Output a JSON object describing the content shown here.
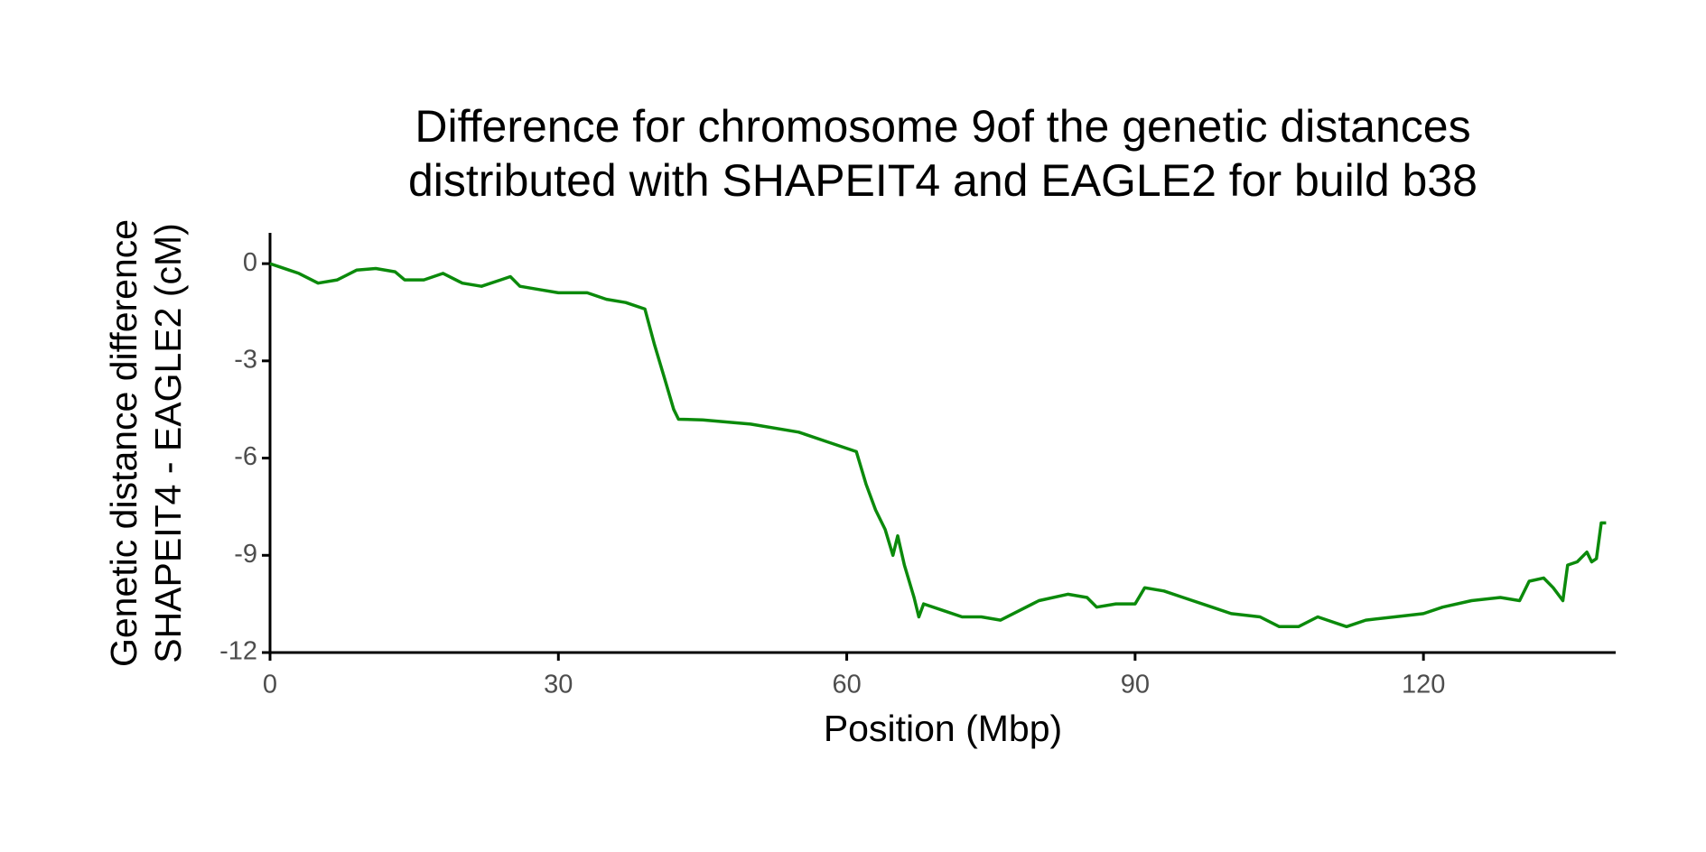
{
  "chart_data": {
    "type": "line",
    "title": [
      "Difference for chromosome 9of the genetic distances",
      "distributed with SHAPEIT4 and EAGLE2 for build b38"
    ],
    "x_label": "Position (Mbp)",
    "y_label": [
      "Genetic distance difference",
      "SHAPEIT4 - EAGLE2 (cM)"
    ],
    "x": [
      0,
      1,
      2,
      3,
      5,
      7,
      9,
      11,
      13,
      14,
      16,
      18,
      20,
      22,
      24,
      25,
      26,
      28,
      30,
      33,
      35,
      37,
      39,
      40,
      41,
      42,
      42.5,
      45,
      50,
      55,
      58,
      61,
      62,
      63,
      64,
      64.8,
      65.3,
      66,
      67,
      67.5,
      68,
      70,
      72,
      74,
      76,
      78,
      80,
      83,
      85,
      86,
      88,
      90,
      91,
      93,
      95,
      98,
      100,
      103,
      105,
      107,
      109,
      110,
      112,
      114,
      117,
      120,
      122,
      125,
      128,
      130,
      131,
      132.5,
      133.5,
      134.5,
      135,
      136,
      137,
      137.5,
      138,
      138.5,
      139
    ],
    "series": [
      {
        "name": "difference",
        "color": "#0b8a0b",
        "values": [
          0,
          -0.1,
          -0.2,
          -0.3,
          -0.6,
          -0.5,
          -0.2,
          -0.15,
          -0.25,
          -0.5,
          -0.5,
          -0.3,
          -0.6,
          -0.7,
          -0.5,
          -0.4,
          -0.7,
          -0.8,
          -0.9,
          -0.9,
          -1.1,
          -1.2,
          -1.4,
          -2.5,
          -3.5,
          -4.5,
          -4.8,
          -4.82,
          -4.95,
          -5.2,
          -5.5,
          -5.8,
          -6.8,
          -7.6,
          -8.2,
          -9.0,
          -8.4,
          -9.3,
          -10.3,
          -10.9,
          -10.5,
          -10.7,
          -10.9,
          -10.9,
          -11.0,
          -10.7,
          -10.4,
          -10.2,
          -10.3,
          -10.6,
          -10.5,
          -10.5,
          -10.0,
          -10.1,
          -10.3,
          -10.6,
          -10.8,
          -10.9,
          -11.2,
          -11.2,
          -10.9,
          -11.0,
          -11.2,
          -11.0,
          -10.9,
          -10.8,
          -10.6,
          -10.4,
          -10.3,
          -10.4,
          -9.8,
          -9.7,
          -10.0,
          -10.4,
          -9.3,
          -9.2,
          -8.9,
          -9.2,
          -9.1,
          -8.0,
          -8.0
        ]
      }
    ],
    "xlim": [
      0,
      140
    ],
    "xticks": [
      0,
      30,
      60,
      90,
      120
    ],
    "ylim": [
      -12,
      0.95
    ],
    "yticks": [
      -12,
      -9,
      -6,
      -3,
      0
    ]
  }
}
